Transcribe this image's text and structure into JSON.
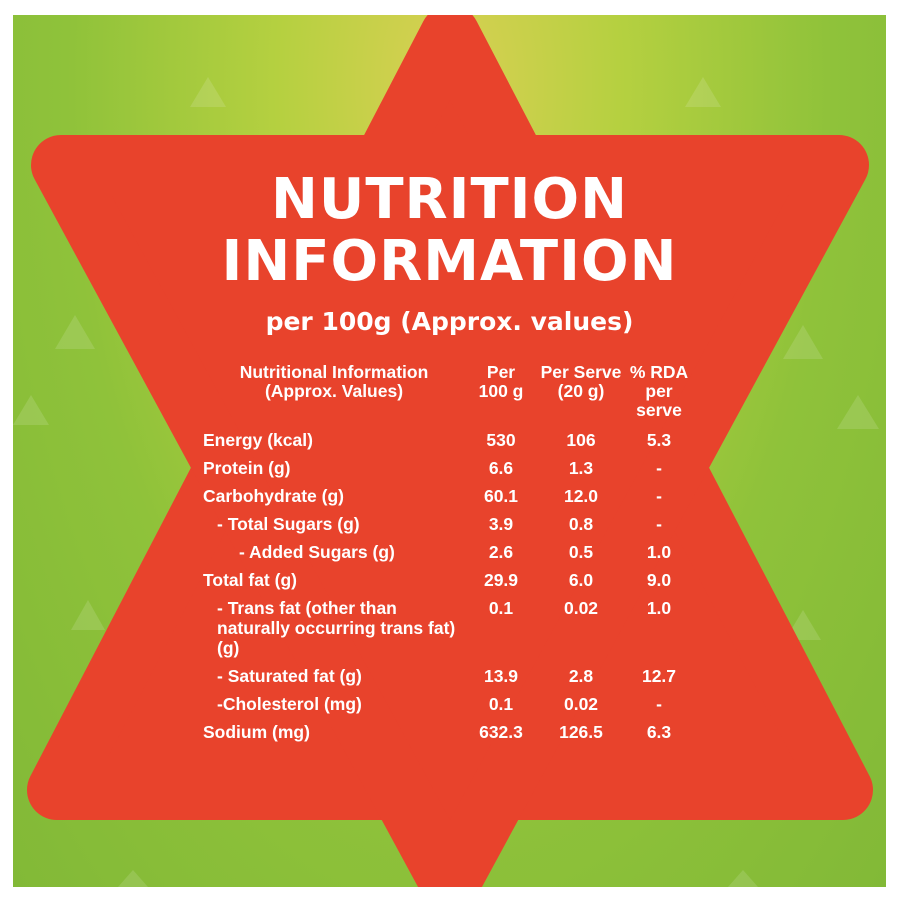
{
  "panel": {
    "title_line1": "NUTRITION",
    "title_line2": "INFORMATION",
    "subtitle": "per 100g (Approx. values)"
  },
  "colors": {
    "background_green": "#8fc23a",
    "background_yellow": "#d9d053",
    "star_red": "#e8432c",
    "text": "#ffffff"
  },
  "table": {
    "headers": {
      "label_line1": "Nutritional Information",
      "label_line2": "(Approx. Values)",
      "per100_line1": "Per",
      "per100_line2": "100 g",
      "serve_line1": "Per Serve",
      "serve_line2": "(20 g)",
      "rda_line1": "% RDA",
      "rda_line2": "per serve"
    },
    "rows": [
      {
        "label": "Energy (kcal)",
        "per100": "530",
        "serve": "106",
        "rda": "5.3"
      },
      {
        "label": "Protein (g)",
        "per100": "6.6",
        "serve": "1.3",
        "rda": "-"
      },
      {
        "label": "Carbohydrate (g)",
        "per100": "60.1",
        "serve": "12.0",
        "rda": "-"
      },
      {
        "label": "- Total Sugars (g)",
        "per100": "3.9",
        "serve": "0.8",
        "rda": "-"
      },
      {
        "label": "- Added Sugars (g)",
        "per100": "2.6",
        "serve": "0.5",
        "rda": "1.0"
      },
      {
        "label": "Total fat (g)",
        "per100": "29.9",
        "serve": "6.0",
        "rda": "9.0"
      },
      {
        "label": "- Trans fat (other than naturally occurring trans fat) (g)",
        "per100": "0.1",
        "serve": "0.02",
        "rda": "1.0"
      },
      {
        "label": "- Saturated fat (g)",
        "per100": "13.9",
        "serve": "2.8",
        "rda": "12.7"
      },
      {
        "label": "-Cholesterol (mg)",
        "per100": "0.1",
        "serve": "0.02",
        "rda": "-"
      },
      {
        "label": "Sodium (mg)",
        "per100": "632.3",
        "serve": "126.5",
        "rda": "6.3"
      }
    ]
  }
}
